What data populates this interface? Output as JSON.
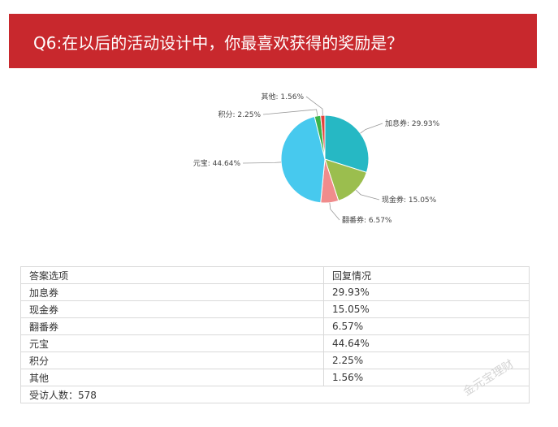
{
  "header": {
    "title": "Q6:在以后的活动设计中，你最喜欢获得的奖励是？"
  },
  "chart_data": {
    "type": "pie",
    "title": "",
    "slices": [
      {
        "name": "加息券",
        "value": 29.93,
        "label": "加息券: 29.93%",
        "color": "#26b8c4"
      },
      {
        "name": "现金券",
        "value": 15.05,
        "label": "现金券: 15.05%",
        "color": "#9bbe4e"
      },
      {
        "name": "翻番券",
        "value": 6.57,
        "label": "翻番券: 6.57%",
        "color": "#f08c8c"
      },
      {
        "name": "元宝",
        "value": 44.64,
        "label": "元宝: 44.64%",
        "color": "#47c9ee"
      },
      {
        "name": "积分",
        "value": 2.25,
        "label": "积分: 2.25%",
        "color": "#3bb34a"
      },
      {
        "name": "其他",
        "value": 1.56,
        "label": "其他: 1.56%",
        "color": "#e3443d"
      }
    ]
  },
  "table": {
    "headers": [
      "答案选项",
      "回复情况"
    ],
    "rows": [
      [
        "加息券",
        "29.93%"
      ],
      [
        "现金券",
        "15.05%"
      ],
      [
        "翻番券",
        "6.57%"
      ],
      [
        "元宝",
        "44.64%"
      ],
      [
        "积分",
        "2.25%"
      ],
      [
        "其他",
        "1.56%"
      ]
    ],
    "footer": "受访人数：578"
  },
  "watermark": "金元宝理财"
}
